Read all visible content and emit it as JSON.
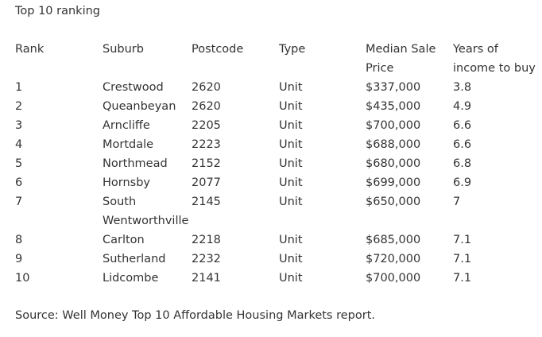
{
  "heading": "Top 10 ranking",
  "columns": {
    "rank": "Rank",
    "suburb": "Suburb",
    "postcode": "Postcode",
    "type": "Type",
    "price_line1": "Median Sale",
    "price_line2": "Price",
    "years_line1": "Years of",
    "years_line2": "income to buy"
  },
  "rows": [
    {
      "rank": "1",
      "suburb": "Crestwood",
      "postcode": "2620",
      "type": "Unit",
      "price": "$337,000",
      "years": "3.8"
    },
    {
      "rank": "2",
      "suburb": "Queanbeyan",
      "postcode": "2620",
      "type": "Unit",
      "price": "$435,000",
      "years": "4.9"
    },
    {
      "rank": "3",
      "suburb": "Arncliffe",
      "postcode": "2205",
      "type": "Unit",
      "price": "$700,000",
      "years": "6.6"
    },
    {
      "rank": "4",
      "suburb": "Mortdale",
      "postcode": "2223",
      "type": "Unit",
      "price": "$688,000",
      "years": "6.6"
    },
    {
      "rank": "5",
      "suburb": "Northmead",
      "postcode": "2152",
      "type": "Unit",
      "price": "$680,000",
      "years": "6.8"
    },
    {
      "rank": "6",
      "suburb": "Hornsby",
      "postcode": "2077",
      "type": "Unit",
      "price": "$699,000",
      "years": "6.9"
    },
    {
      "rank": "7",
      "suburb": "South Wentworthville",
      "postcode": "2145",
      "type": "Unit",
      "price": "$650,000",
      "years": "7"
    },
    {
      "rank": "8",
      "suburb": "Carlton",
      "postcode": "2218",
      "type": "Unit",
      "price": "$685,000",
      "years": "7.1"
    },
    {
      "rank": "9",
      "suburb": "Sutherland",
      "postcode": "2232",
      "type": "Unit",
      "price": "$720,000",
      "years": "7.1"
    },
    {
      "rank": "10",
      "suburb": "Lidcombe",
      "postcode": "2141",
      "type": "Unit",
      "price": "$700,000",
      "years": "7.1"
    }
  ],
  "source": "Source: Well Money Top 10 Affordable Housing Markets report."
}
